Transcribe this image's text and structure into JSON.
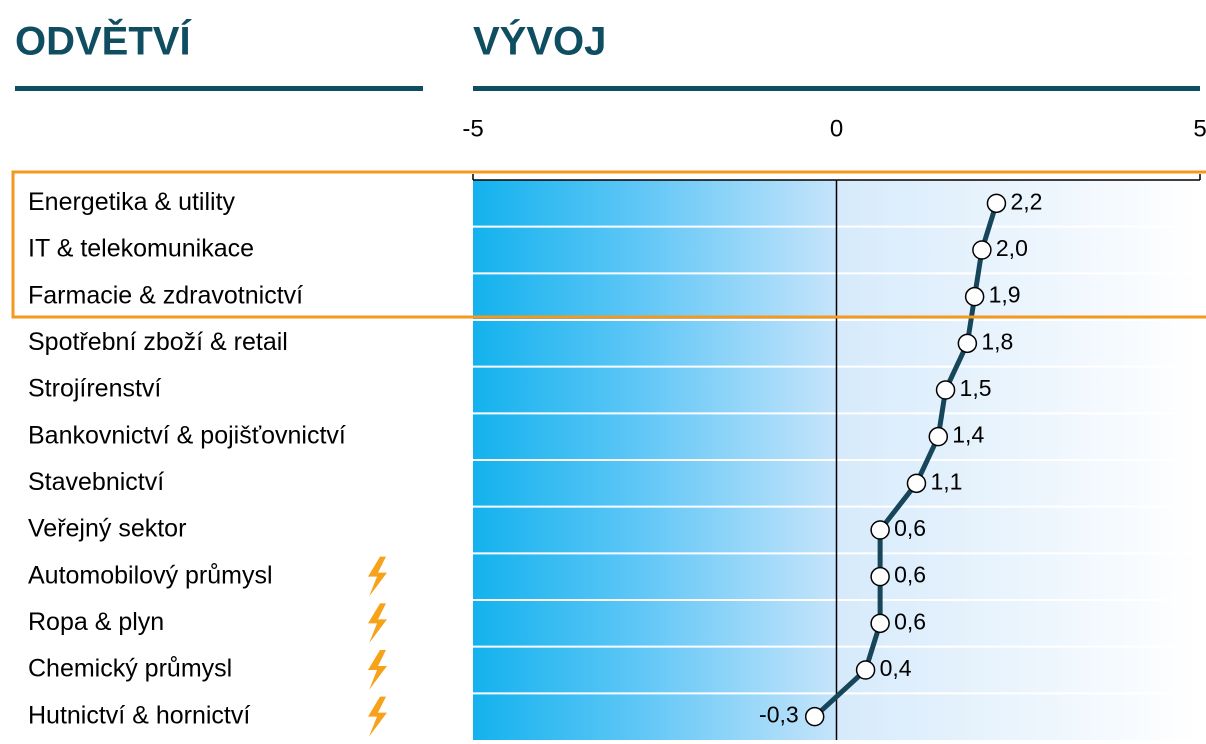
{
  "chart_data": {
    "type": "dot-line",
    "column_titles": [
      "ODVĚTVÍ",
      "VÝVOJ"
    ],
    "categories": [
      "Energetika & utility",
      "IT & telekomunikace",
      "Farmacie & zdravotnictví",
      "Spotřební zboží & retail",
      "Strojírenství",
      "Bankovnictví & pojišťovnictví",
      "Stavebnictví",
      "Veřejný sektor",
      "Automobilový průmysl",
      "Ropa & plyn",
      "Chemický průmysl",
      "Hutnictví & hornictví"
    ],
    "values": [
      2.2,
      2.0,
      1.9,
      1.8,
      1.5,
      1.4,
      1.1,
      0.6,
      0.6,
      0.6,
      0.4,
      -0.3
    ],
    "value_labels": [
      "2,2",
      "2,0",
      "1,9",
      "1,8",
      "1,5",
      "1,4",
      "1,1",
      "0,6",
      "0,6",
      "0,6",
      "0,4",
      "-0,3"
    ],
    "warning_flags": [
      false,
      false,
      false,
      false,
      false,
      false,
      false,
      false,
      true,
      true,
      true,
      true
    ],
    "color": "#17465a",
    "xlim": [
      -5,
      5
    ],
    "xticks": [
      -5,
      0,
      5
    ]
  }
}
